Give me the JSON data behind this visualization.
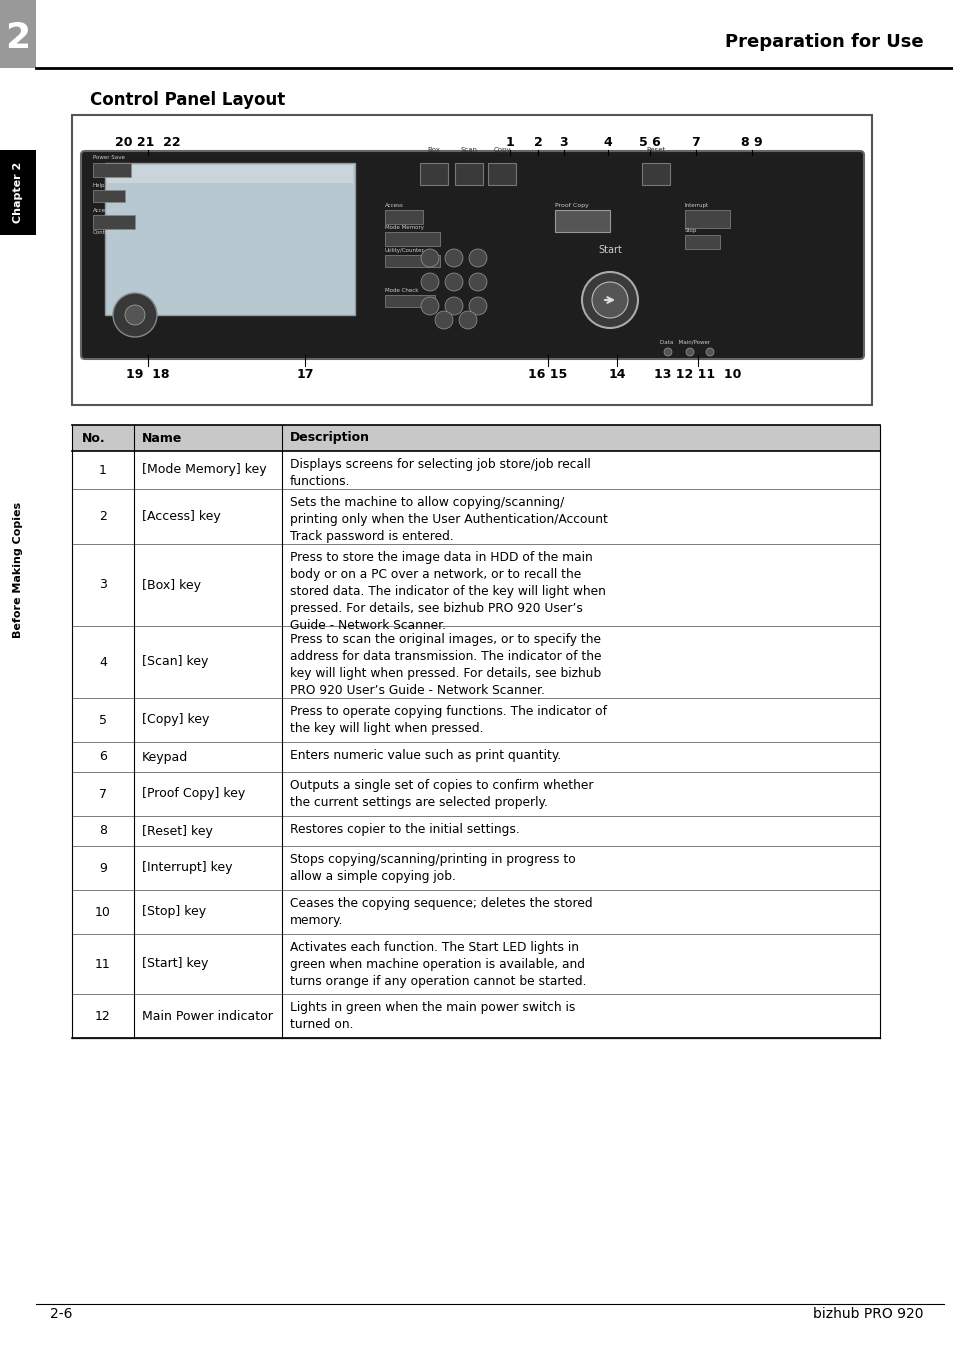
{
  "page_title": "Preparation for Use",
  "chapter_num": "2",
  "section_title": "Control Panel Layout",
  "sidebar_text": "Before Making Copies",
  "chapter_label": "Chapter 2",
  "footer_left": "2-6",
  "footer_right": "bizhub PRO 920",
  "bg_color": "#ffffff",
  "table_header_bg": "#c8c8c8",
  "table_header_cols": [
    "No.",
    "Name",
    "Description"
  ],
  "table_rows": [
    [
      "1",
      "[Mode Memory] key",
      "Displays screens for selecting job store/job recall\nfunctions."
    ],
    [
      "2",
      "[Access] key",
      "Sets the machine to allow copying/scanning/\nprinting only when the User Authentication/Account\nTrack password is entered."
    ],
    [
      "3",
      "[Box] key",
      "Press to store the image data in HDD of the main\nbody or on a PC over a network, or to recall the\nstored data. The indicator of the key will light when\npressed. For details, see bizhub PRO 920 User’s\nGuide - Network Scanner."
    ],
    [
      "4",
      "[Scan] key",
      "Press to scan the original images, or to specify the\naddress for data transmission. The indicator of the\nkey will light when pressed. For details, see bizhub\nPRO 920 User’s Guide - Network Scanner."
    ],
    [
      "5",
      "[Copy] key",
      "Press to operate copying functions. The indicator of\nthe key will light when pressed."
    ],
    [
      "6",
      "Keypad",
      "Enters numeric value such as print quantity."
    ],
    [
      "7",
      "[Proof Copy] key",
      "Outputs a single set of copies to confirm whether\nthe current settings are selected properly."
    ],
    [
      "8",
      "[Reset] key",
      "Restores copier to the initial settings."
    ],
    [
      "9",
      "[Interrupt] key",
      "Stops copying/scanning/printing in progress to\nallow a simple copying job."
    ],
    [
      "10",
      "[Stop] key",
      "Ceases the copying sequence; deletes the stored\nmemory."
    ],
    [
      "11",
      "[Start] key",
      "Activates each function. The Start LED lights in\ngreen when machine operation is available, and\nturns orange if any operation cannot be started."
    ],
    [
      "12",
      "Main Power indicator",
      "Lights in green when the main power switch is\nturned on."
    ]
  ],
  "panel_bg": "#1e1e1e",
  "screen_bg": "#b8c8d0",
  "top_labels": [
    [
      0.148,
      "20 21  22"
    ],
    [
      0.53,
      "1"
    ],
    [
      0.558,
      "2"
    ],
    [
      0.583,
      "3"
    ],
    [
      0.628,
      "4"
    ],
    [
      0.67,
      "5 6"
    ],
    [
      0.718,
      "7"
    ],
    [
      0.772,
      "8 9"
    ]
  ],
  "bottom_labels": [
    [
      0.148,
      "19  18"
    ],
    [
      0.305,
      "17"
    ],
    [
      0.548,
      "16 15"
    ],
    [
      0.617,
      "14"
    ],
    [
      0.695,
      "13 12 11  10"
    ]
  ]
}
